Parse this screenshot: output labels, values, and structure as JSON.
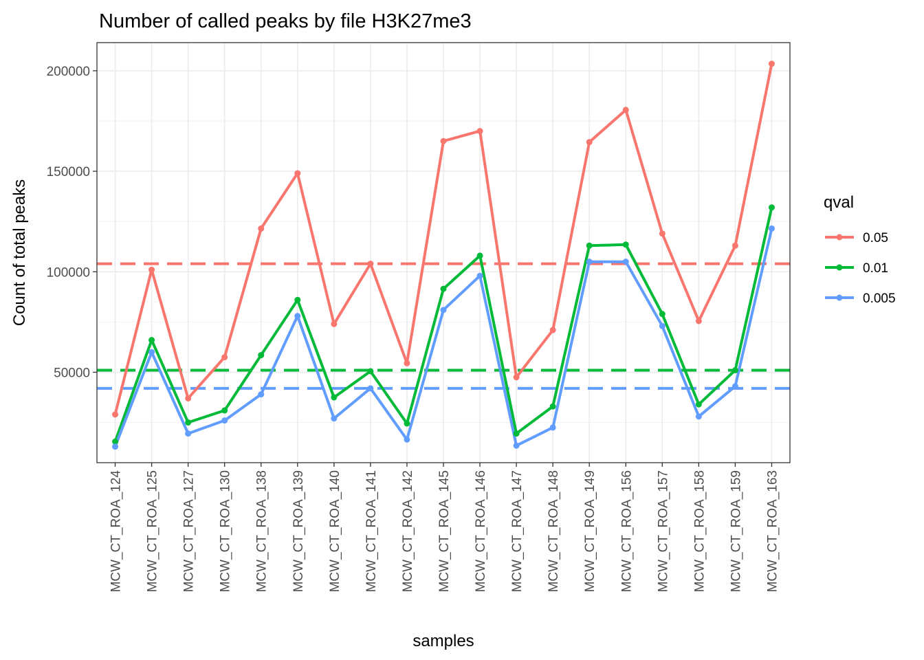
{
  "chart_data": {
    "type": "line",
    "title": "Number of called peaks by file H3K27me3",
    "xlabel": "samples",
    "ylabel": "Count of total peaks",
    "ylim": [
      5000,
      214000
    ],
    "yticks": [
      50000,
      100000,
      150000,
      200000
    ],
    "yticks_labels": [
      "50000",
      "100000",
      "150000",
      "200000"
    ],
    "grid": true,
    "legend_position": "right",
    "legend_title": "qval",
    "categories": [
      "MCW_CT_ROA_124",
      "MCW_CT_ROA_125",
      "MCW_CT_ROA_127",
      "MCW_CT_ROA_130",
      "MCW_CT_ROA_138",
      "MCW_CT_ROA_139",
      "MCW_CT_ROA_140",
      "MCW_CT_ROA_141",
      "MCW_CT_ROA_142",
      "MCW_CT_ROA_145",
      "MCW_CT_ROA_146",
      "MCW_CT_ROA_147",
      "MCW_CT_ROA_148",
      "MCW_CT_ROA_149",
      "MCW_CT_ROA_156",
      "MCW_CT_ROA_157",
      "MCW_CT_ROA_158",
      "MCW_CT_ROA_159",
      "MCW_CT_ROA_163"
    ],
    "series": [
      {
        "name": "0.05",
        "color": "#F8766D",
        "mean": 104000,
        "values": [
          29000,
          101000,
          37000,
          57500,
          121500,
          149000,
          74000,
          104000,
          54500,
          165000,
          170000,
          47500,
          71000,
          164500,
          180500,
          119000,
          75500,
          113000,
          203500
        ]
      },
      {
        "name": "0.01",
        "color": "#00BA38",
        "mean": 51000,
        "values": [
          15500,
          66000,
          25000,
          31000,
          58500,
          86000,
          37500,
          50500,
          24500,
          91500,
          108000,
          19500,
          33000,
          113000,
          113500,
          79000,
          34000,
          51000,
          132000
        ]
      },
      {
        "name": "0.005",
        "color": "#619CFF",
        "mean": 42000,
        "values": [
          13000,
          60000,
          19500,
          26000,
          39000,
          78000,
          27000,
          42000,
          16500,
          81000,
          98000,
          13500,
          22500,
          105000,
          105000,
          73000,
          28000,
          43000,
          121500
        ]
      }
    ]
  }
}
